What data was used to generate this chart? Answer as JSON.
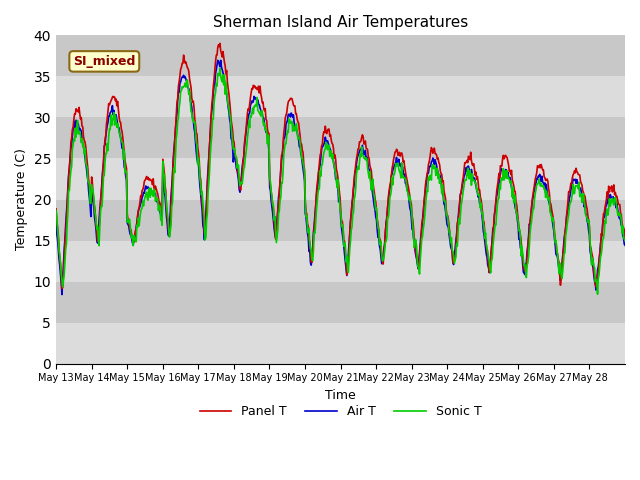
{
  "title": "Sherman Island Air Temperatures",
  "xlabel": "Time",
  "ylabel": "Temperature (C)",
  "ylim": [
    0,
    40
  ],
  "yticks": [
    0,
    5,
    10,
    15,
    20,
    25,
    30,
    35,
    40
  ],
  "bg_light": "#dcdcdc",
  "bg_dark": "#c8c8c8",
  "figure_color": "#ffffff",
  "annotation_text": "SI_mixed",
  "line_colors": {
    "panel": "#cc0000",
    "air": "#0000cc",
    "sonic": "#00cc00"
  },
  "line_width": 1.2,
  "legend_labels": [
    "Panel T",
    "Air T",
    "Sonic T"
  ],
  "xticklabels": [
    "May 13",
    "May 14",
    "May 15",
    "May 16",
    "May 17",
    "May 18",
    "May 19",
    "May 20",
    "May 21",
    "May 22",
    "May 23",
    "May 24",
    "May 25",
    "May 26",
    "May 27",
    "May 28"
  ]
}
